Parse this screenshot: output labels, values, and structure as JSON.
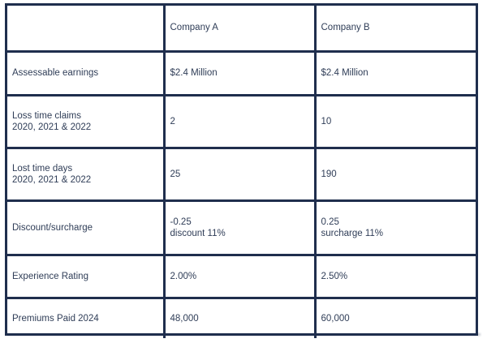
{
  "table": {
    "header": [
      "",
      "Company A",
      "Company B"
    ],
    "rows": [
      {
        "label": "Assessable earnings",
        "a": "$2.4 Million",
        "b": "$2.4 Million"
      },
      {
        "label": "Loss time claims\n2020, 2021 & 2022",
        "a": "2",
        "b": "10"
      },
      {
        "label": "Lost time days\n2020, 2021 & 2022",
        "a": "25",
        "b": "190"
      },
      {
        "label": "Discount/surcharge",
        "a": "-0.25\ndiscount 11%",
        "b": "0.25\nsurcharge 11%"
      },
      {
        "label": "Experience Rating",
        "a": "2.00%",
        "b": "2.50%"
      },
      {
        "label": "Premiums Paid 2024",
        "a": "48,000",
        "b": "60,000"
      }
    ]
  }
}
